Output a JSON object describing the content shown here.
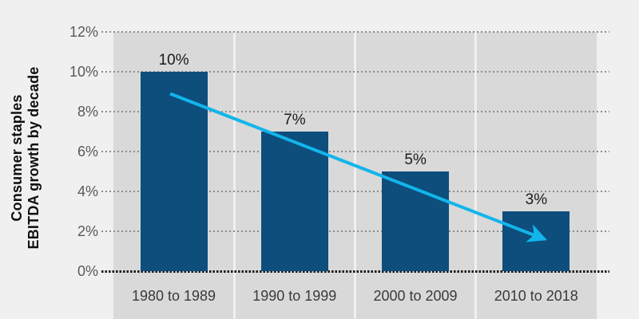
{
  "chart_data": {
    "type": "bar",
    "title": "",
    "ylabel_lines": [
      "Consumer staples",
      "EBITDA growth by decade"
    ],
    "categories": [
      "1980 to 1989",
      "1990 to 1999",
      "2000 to 2009",
      "2010 to 2018"
    ],
    "values": [
      10,
      7,
      5,
      3
    ],
    "value_labels": [
      "10%",
      "7%",
      "5%",
      "3%"
    ],
    "yticks": [
      {
        "value": 12,
        "label": "12%"
      },
      {
        "value": 10,
        "label": "10%"
      },
      {
        "value": 8,
        "label": "8%"
      },
      {
        "value": 6,
        "label": "6%"
      },
      {
        "value": 4,
        "label": "4%"
      },
      {
        "value": 2,
        "label": "2%"
      },
      {
        "value": 0,
        "label": "0%"
      }
    ],
    "ylim": [
      0,
      12
    ],
    "grid": "dotted horizontal gridlines, heavier dotted zero baseline",
    "legend": "none",
    "annotation_arrow": {
      "description": "downward trend arrow across bars",
      "from": {
        "col": 0.47,
        "value": 8.9
      },
      "to": {
        "col": 3.57,
        "value": 1.6
      }
    },
    "colors": {
      "bar": "#0d4e7d",
      "arrow": "#12b5ea",
      "plot_bg": "#d9d9d9",
      "page_bg": "#f0f0f0",
      "tick_label": "#595959",
      "category_label": "#3a3a3a",
      "value_label": "#1a1a1a",
      "gridline": "#8c8c8c",
      "zero_line": "#1a1a1a",
      "axis_title": "#0f0f0f"
    }
  }
}
